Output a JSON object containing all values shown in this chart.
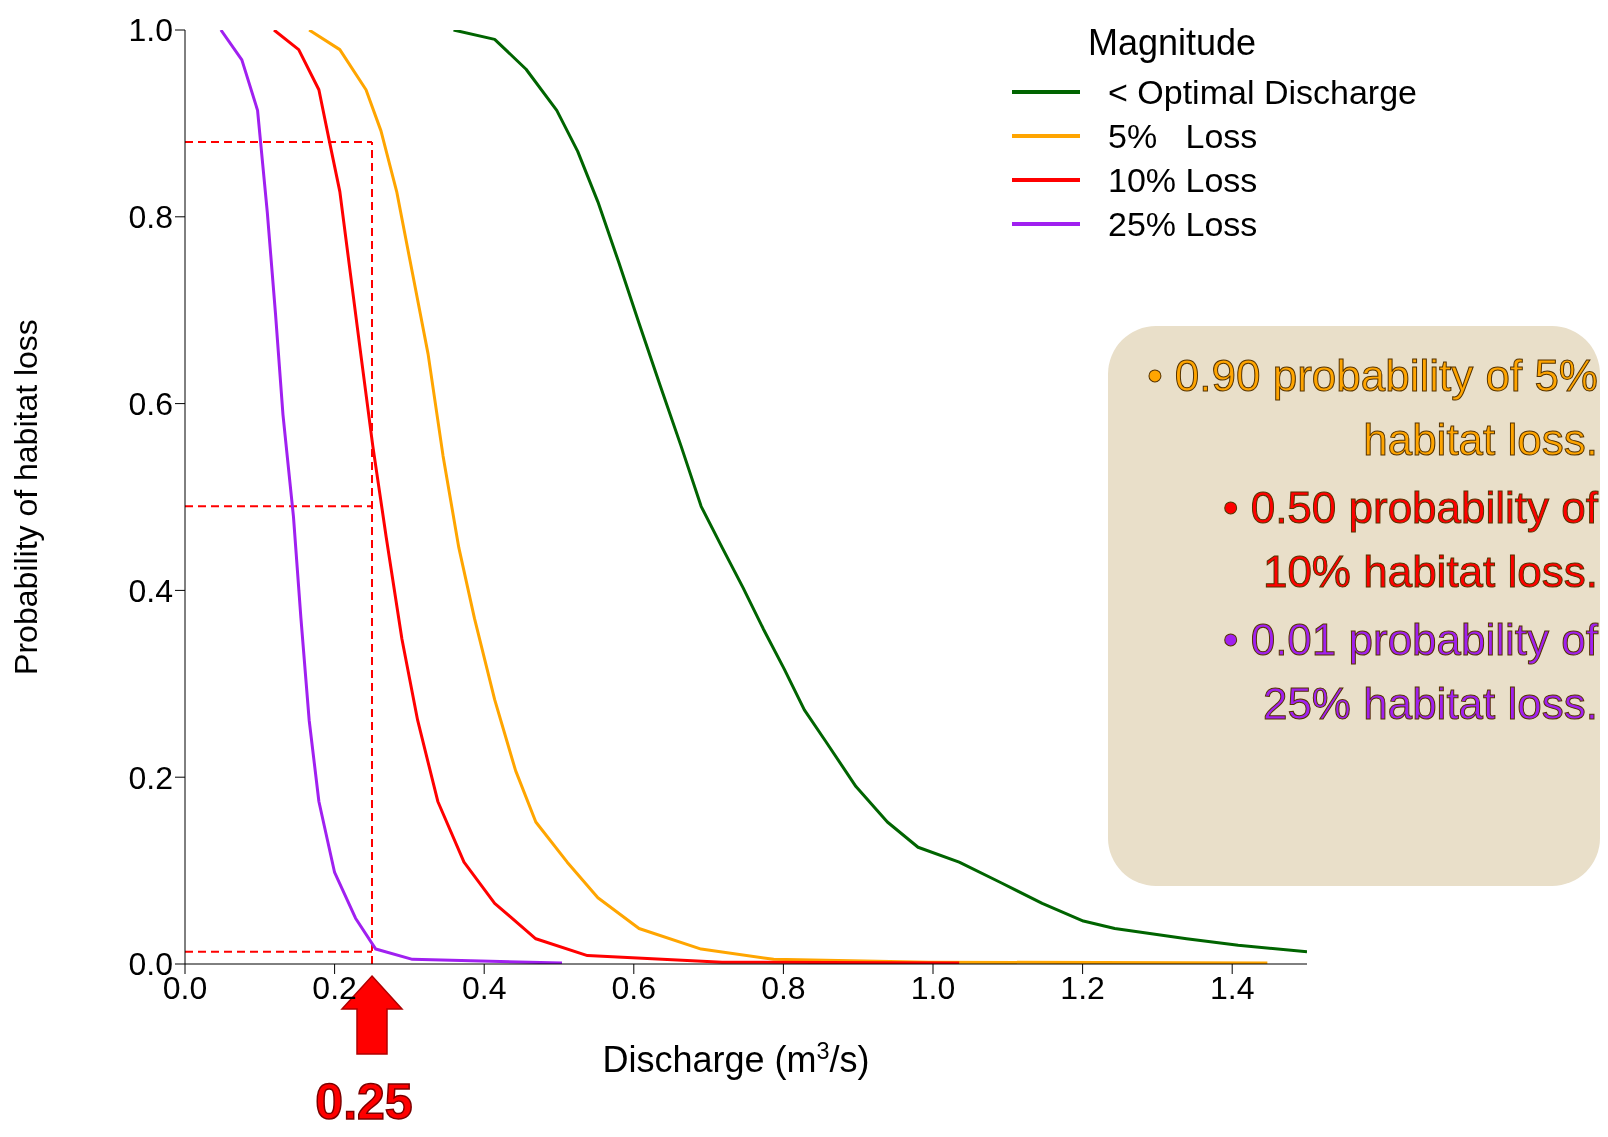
{
  "chart_data": {
    "type": "line",
    "xlabel": "Discharge (m$^{3}$/s)",
    "ylabel": "Probability of habitat loss",
    "legend_title": "Magnitude",
    "legend": "top right",
    "grid": false,
    "marker": "none",
    "line_style": "solid",
    "xlim": [
      0,
      1.5
    ],
    "ylim": [
      0,
      1
    ],
    "xticks": [
      {
        "value": 0,
        "label": "0.0"
      },
      {
        "value": 0.2,
        "label": "0.2"
      },
      {
        "value": 0.4,
        "label": "0.4"
      },
      {
        "value": 0.6,
        "label": "0.6"
      },
      {
        "value": 0.8,
        "label": "0.8"
      },
      {
        "value": 1.0,
        "label": "1.0"
      },
      {
        "value": 1.2,
        "label": "1.2"
      },
      {
        "value": 1.4,
        "label": "1.4"
      }
    ],
    "yticks": [
      {
        "value": 0,
        "label": "0.0"
      },
      {
        "value": 0.2,
        "label": "0.2"
      },
      {
        "value": 0.4,
        "label": "0.4"
      },
      {
        "value": 0.6,
        "label": "0.6"
      },
      {
        "value": 0.8,
        "label": "0.8"
      },
      {
        "value": 1.0,
        "label": "1.0"
      }
    ],
    "series": [
      {
        "name": "< Optimal Discharge",
        "color": "#006400",
        "x": [
          0.359,
          0.414,
          0.456,
          0.497,
          0.525,
          0.552,
          0.58,
          0.607,
          0.635,
          0.663,
          0.69,
          0.718,
          0.746,
          0.773,
          0.801,
          0.828,
          0.856,
          0.897,
          0.939,
          0.98,
          1.035,
          1.091,
          1.146,
          1.201,
          1.243,
          1.339,
          1.408,
          1.5
        ],
        "values": [
          1.0,
          0.99,
          0.958,
          0.914,
          0.87,
          0.816,
          0.751,
          0.686,
          0.62,
          0.555,
          0.49,
          0.446,
          0.403,
          0.359,
          0.316,
          0.272,
          0.239,
          0.19,
          0.152,
          0.125,
          0.109,
          0.087,
          0.065,
          0.046,
          0.038,
          0.027,
          0.02,
          0.013
        ]
      },
      {
        "name": "5%   Loss",
        "color": "#ffa500",
        "x": [
          0.166,
          0.207,
          0.242,
          0.262,
          0.283,
          0.304,
          0.325,
          0.345,
          0.366,
          0.387,
          0.414,
          0.442,
          0.469,
          0.511,
          0.552,
          0.607,
          0.69,
          0.787,
          0.994,
          1.447
        ],
        "values": [
          1.0,
          0.979,
          0.936,
          0.892,
          0.827,
          0.74,
          0.653,
          0.544,
          0.446,
          0.37,
          0.283,
          0.207,
          0.152,
          0.109,
          0.071,
          0.038,
          0.016,
          0.005,
          0.002,
          0.001
        ]
      },
      {
        "name": "10% Loss",
        "color": "#ff0000",
        "x": [
          0.119,
          0.152,
          0.179,
          0.193,
          0.207,
          0.221,
          0.235,
          0.251,
          0.269,
          0.29,
          0.311,
          0.338,
          0.373,
          0.414,
          0.469,
          0.538,
          0.718,
          1.035
        ],
        "values": [
          1.0,
          0.979,
          0.936,
          0.881,
          0.827,
          0.74,
          0.653,
          0.555,
          0.457,
          0.348,
          0.261,
          0.174,
          0.109,
          0.065,
          0.027,
          0.009,
          0.002,
          0.001
        ]
      },
      {
        "name": "25% Loss",
        "color": "#a020f0",
        "x": [
          0.048,
          0.076,
          0.097,
          0.11,
          0.121,
          0.131,
          0.145,
          0.155,
          0.166,
          0.179,
          0.2,
          0.228,
          0.255,
          0.304,
          0.504
        ],
        "values": [
          1.0,
          0.968,
          0.914,
          0.805,
          0.696,
          0.588,
          0.479,
          0.37,
          0.261,
          0.174,
          0.098,
          0.049,
          0.016,
          0.005,
          0.001
        ]
      }
    ],
    "ref_lines": [
      {
        "axis": "y",
        "value": 0.88,
        "color": "#ff0000",
        "line_style": "dashed"
      },
      {
        "axis": "y",
        "value": 0.49,
        "color": "#ff0000",
        "line_style": "dashed"
      },
      {
        "axis": "y",
        "value": 0.013,
        "color": "#ff0000",
        "line_style": "dashed"
      },
      {
        "axis": "x",
        "value": 0.25,
        "label": "0.25",
        "color": "#ff0000",
        "line_style": "dashed"
      }
    ],
    "annotations": [
      "• 0.90 probability of 5% habitat loss.",
      "• 0.50 probability of 10% habitat loss.",
      "• 0.01 probability of 25% habitat loss."
    ]
  }
}
